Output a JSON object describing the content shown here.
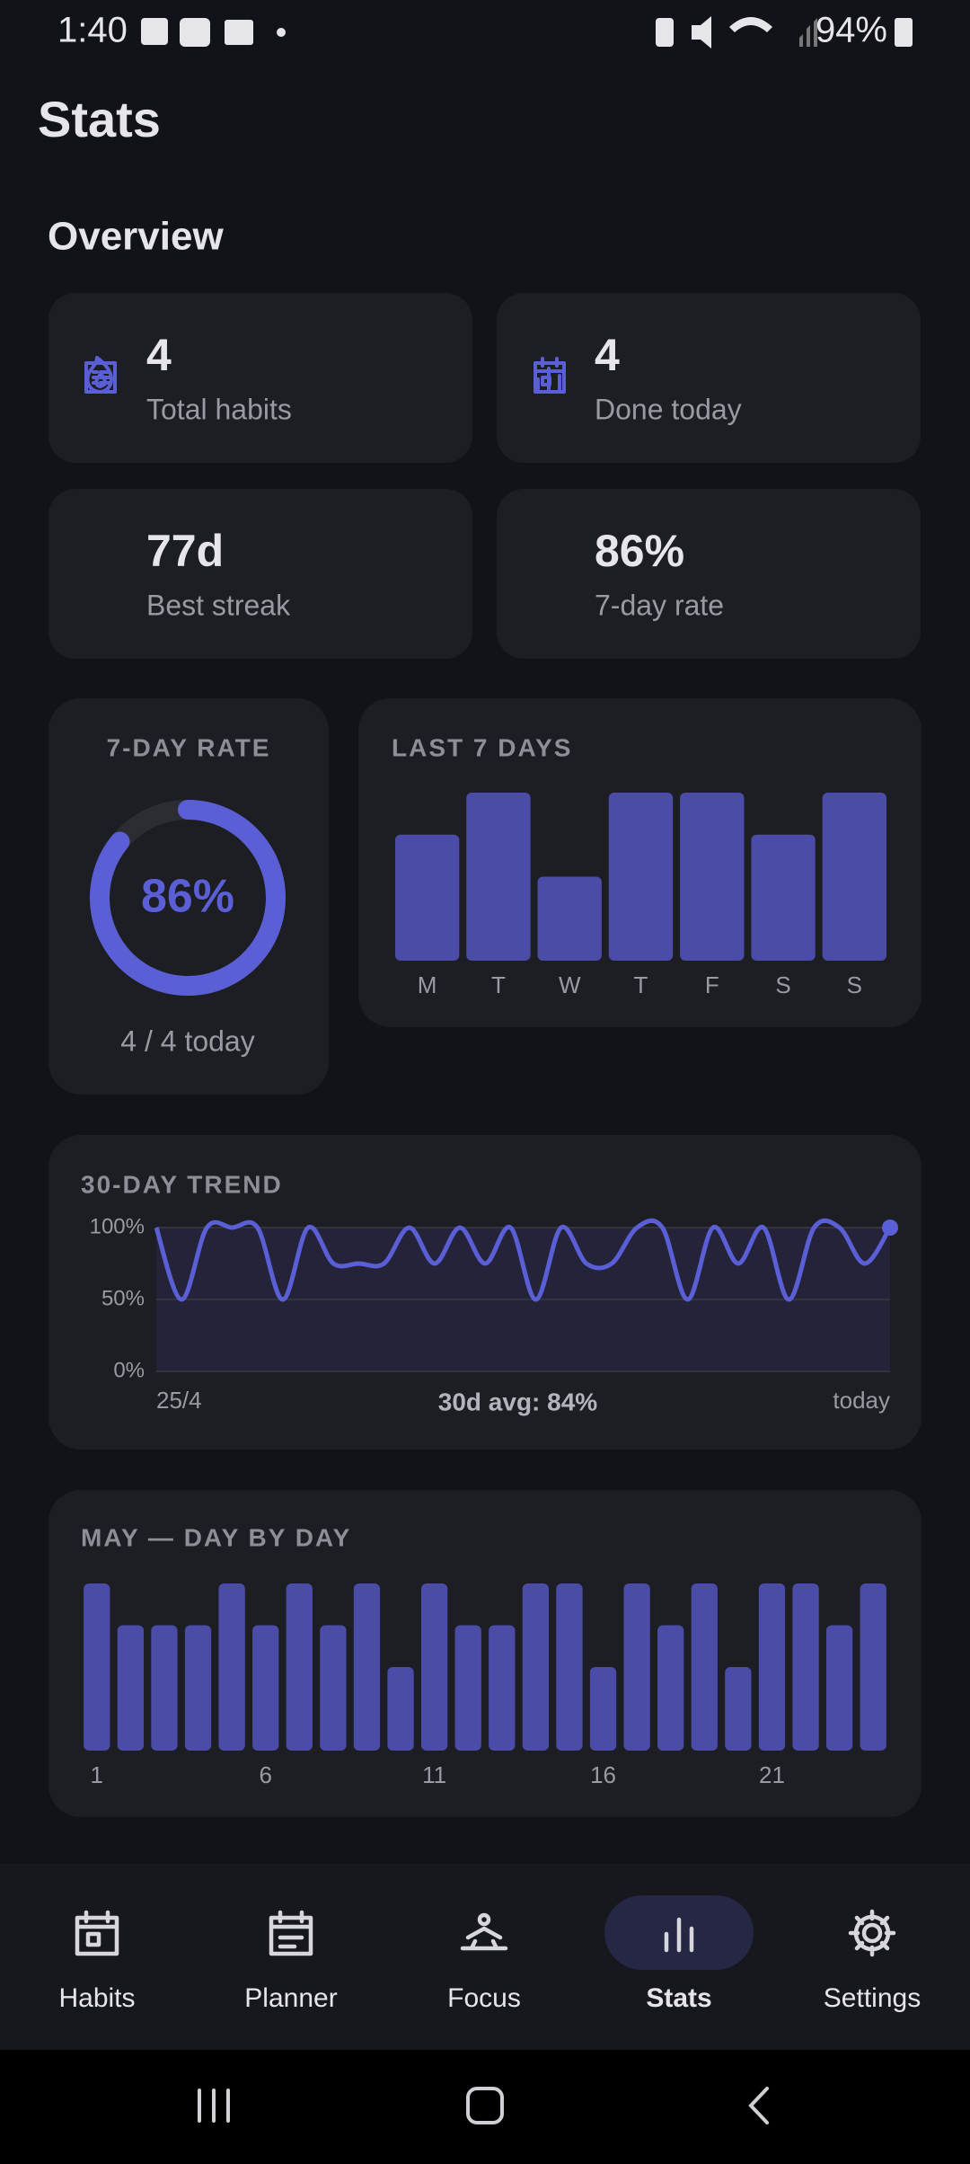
{
  "status_bar": {
    "time": "1:40",
    "battery": "94%"
  },
  "header": {
    "title": "Stats"
  },
  "overview": {
    "title": "Overview",
    "cards": [
      {
        "value": "4",
        "label": "Total habits"
      },
      {
        "value": "4",
        "label": "Done today"
      },
      {
        "value": "77d",
        "label": "Best streak"
      },
      {
        "value": "86%",
        "label": "7-day rate"
      }
    ]
  },
  "chart_data": [
    {
      "type": "donut",
      "title": "7-DAY RATE",
      "values": [
        86
      ],
      "value_labels": [
        "86%"
      ],
      "ylim": [
        0,
        100
      ],
      "caption": "4 / 4 today",
      "color": "#5b5fd6"
    },
    {
      "type": "bar",
      "title": "LAST 7 DAYS",
      "categories": [
        "M",
        "T",
        "W",
        "T",
        "F",
        "S",
        "S"
      ],
      "values": [
        75,
        100,
        50,
        100,
        100,
        75,
        100
      ],
      "ylim": [
        0,
        100
      ],
      "color": "#4a4ca8"
    },
    {
      "type": "line",
      "title": "30-DAY TREND",
      "categories": [
        "25/4",
        null,
        null,
        null,
        null,
        null,
        null,
        null,
        null,
        null,
        null,
        null,
        null,
        null,
        null,
        null,
        null,
        null,
        null,
        null,
        null,
        null,
        null,
        null,
        null,
        null,
        null,
        null,
        null,
        "today"
      ],
      "values": [
        100,
        50,
        100,
        100,
        100,
        50,
        100,
        75,
        75,
        75,
        100,
        75,
        100,
        75,
        100,
        50,
        100,
        75,
        75,
        100,
        100,
        50,
        100,
        75,
        100,
        50,
        100,
        100,
        75,
        100
      ],
      "ylim": [
        0,
        100
      ],
      "yticks": [
        {
          "value": 100,
          "label": "100%"
        },
        {
          "value": 50,
          "label": "50%"
        },
        {
          "value": 0,
          "label": "0%"
        }
      ],
      "annotation": "30d avg: 84%",
      "color": "#5b5fd6",
      "grid": true
    },
    {
      "type": "bar",
      "title": "MAY — DAY BY DAY",
      "categories": [
        "1",
        null,
        null,
        null,
        null,
        "6",
        null,
        null,
        null,
        null,
        "11",
        null,
        null,
        null,
        null,
        "16",
        null,
        null,
        null,
        null,
        "21",
        null,
        null,
        null
      ],
      "values": [
        100,
        75,
        75,
        75,
        100,
        75,
        100,
        75,
        100,
        50,
        100,
        75,
        75,
        100,
        100,
        50,
        100,
        75,
        100,
        50,
        100,
        100,
        75,
        100
      ],
      "ylim": [
        0,
        100
      ],
      "color": "#4a4ca8"
    }
  ],
  "nav": {
    "items": [
      "Habits",
      "Planner",
      "Focus",
      "Stats",
      "Settings"
    ],
    "active": 3
  }
}
